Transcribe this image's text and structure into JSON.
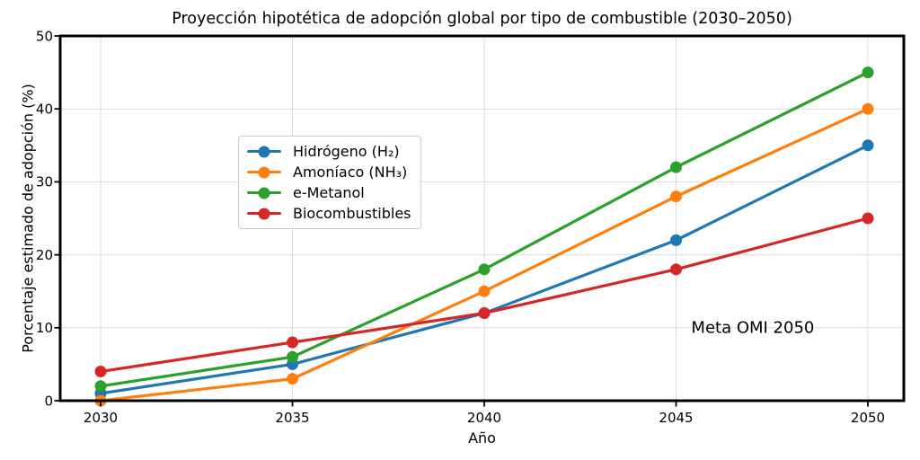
{
  "chart_data": {
    "type": "line",
    "title": "Proyección hipotética de adopción global por tipo de combustible (2030–2050)",
    "xlabel": "Año",
    "ylabel": "Porcentaje estimado de adopción (%)",
    "x": [
      2030,
      2035,
      2040,
      2045,
      2050
    ],
    "xticks": [
      "2030",
      "2035",
      "2040",
      "2045",
      "2050"
    ],
    "yticks": [
      0,
      10,
      20,
      30,
      40,
      50
    ],
    "ylim": [
      0,
      50
    ],
    "grid": true,
    "grid_color": "#dcdcdc",
    "legend_position": "upper-left-inside",
    "series": [
      {
        "name": "Hidrógeno (H₂)",
        "color": "#1f77b4",
        "values": [
          1,
          5,
          12,
          22,
          35
        ]
      },
      {
        "name": "Amoníaco (NH₃)",
        "color": "#ff7f0e",
        "values": [
          0,
          3,
          15,
          28,
          40
        ]
      },
      {
        "name": "e-Metanol",
        "color": "#2ca02c",
        "values": [
          2,
          6,
          18,
          32,
          45
        ]
      },
      {
        "name": "Biocombustibles",
        "color": "#d62728",
        "values": [
          4,
          8,
          12,
          18,
          25
        ]
      }
    ],
    "annotation": {
      "text": "Meta OMI 2050",
      "x": 2047,
      "y": 10
    }
  }
}
